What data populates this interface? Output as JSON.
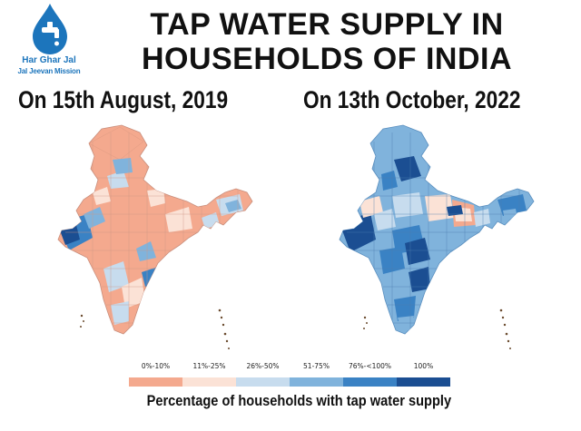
{
  "logo": {
    "line1": "Har Ghar Jal",
    "line2": "Jal Jeevan Mission",
    "color": "#1c75bc"
  },
  "title": {
    "line1": "TAP WATER SUPPLY IN",
    "line2": "HOUSEHOLDS OF INDIA"
  },
  "maps": [
    {
      "date": "On 15th August, 2019",
      "dominant_class": "0%-10%"
    },
    {
      "date": "On 13th October, 2022",
      "dominant_class": "51-75%"
    }
  ],
  "legend": {
    "title": "Percentage of households with tap water supply",
    "classes": [
      {
        "label": "0%-10%",
        "color": "#f4a98e"
      },
      {
        "label": "11%-25%",
        "color": "#fbe2d6"
      },
      {
        "label": "26%-50%",
        "color": "#c7dcee"
      },
      {
        "label": "51-75%",
        "color": "#80b3dc"
      },
      {
        "label": "76%-<100%",
        "color": "#3a82c4"
      },
      {
        "label": "100%",
        "color": "#1b4e92"
      }
    ]
  }
}
